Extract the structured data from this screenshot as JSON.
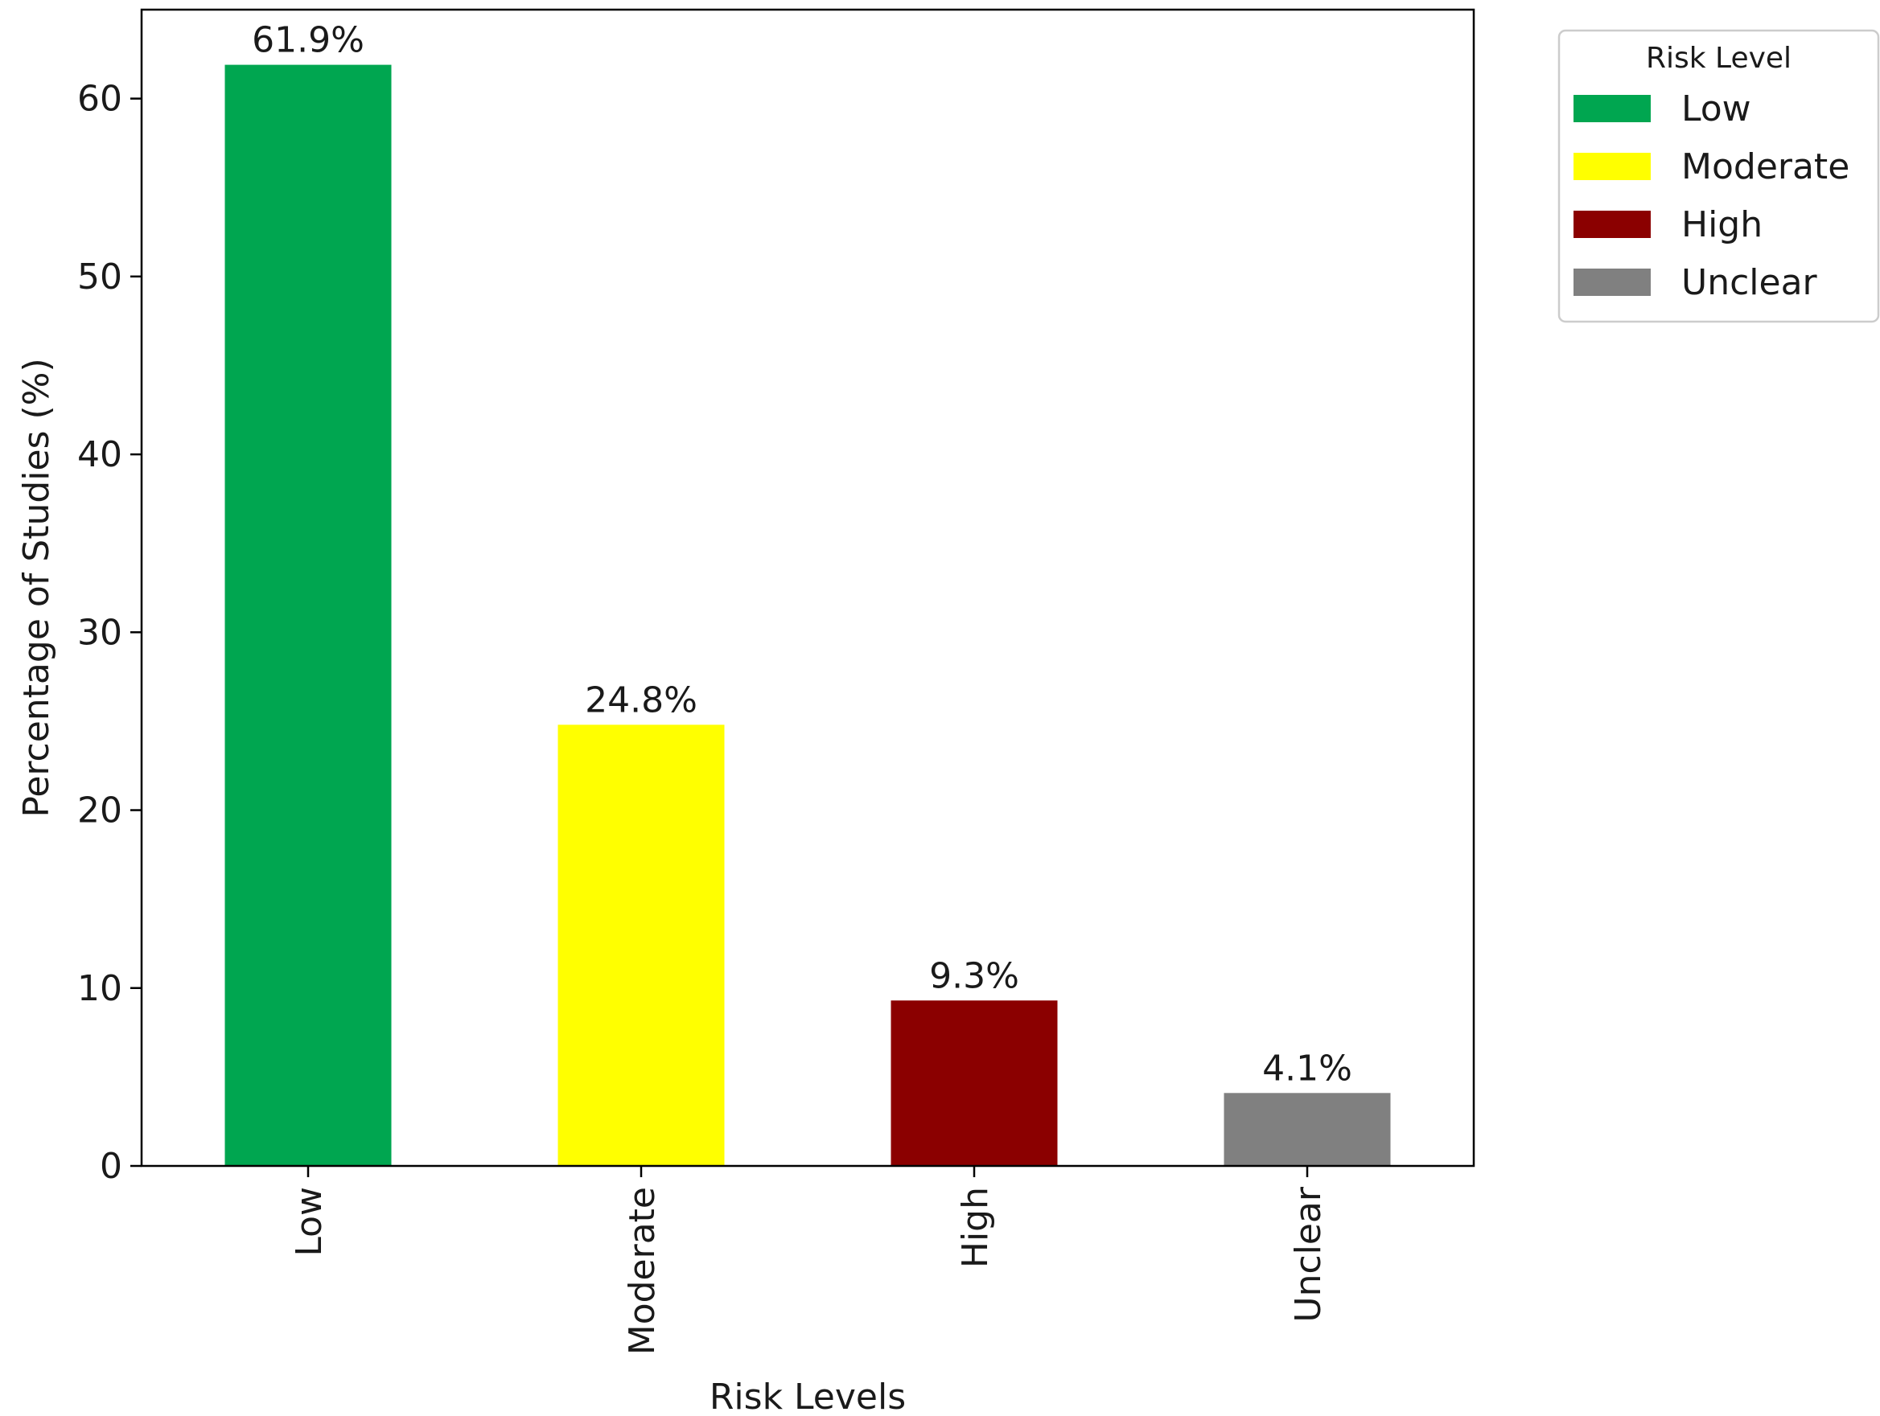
{
  "chart_data": {
    "type": "bar",
    "title": "",
    "xlabel": "Risk Levels",
    "ylabel": "Percentage of Studies (%)",
    "categories": [
      "Low",
      "Moderate",
      "High",
      "Unclear"
    ],
    "values": [
      61.9,
      24.8,
      9.3,
      4.1
    ],
    "data_labels": [
      "61.9%",
      "24.8%",
      "9.3%",
      "4.1%"
    ],
    "colors": [
      "#00a650",
      "#ffff00",
      "#8b0000",
      "#808080"
    ],
    "ylim": [
      0,
      65
    ],
    "yticks": [
      0,
      10,
      20,
      30,
      40,
      50,
      60
    ],
    "grid": false,
    "legend": {
      "title": "Risk Level",
      "placement": "outside-upper-right",
      "entries": [
        "Low",
        "Moderate",
        "High",
        "Unclear"
      ]
    }
  }
}
